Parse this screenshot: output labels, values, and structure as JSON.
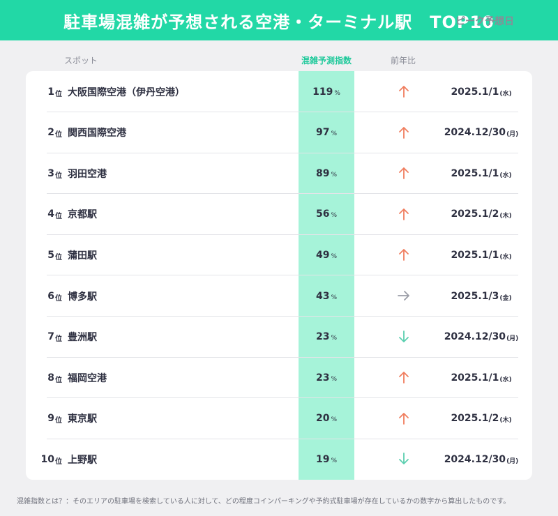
{
  "title": "駐車場混雑が予想される空港・ターミナル駅　TOP10",
  "columns": {
    "spot": "スポット",
    "index": "混雑予測指数",
    "yoy": "前年比",
    "peak": "ピーク予想日"
  },
  "rank_unit": "位",
  "percent_unit": "%",
  "colors": {
    "accent": "#22d8a6",
    "highlight": "#a6f3d9",
    "up": "#f07e5f",
    "flat": "#9a9ca6",
    "down": "#5ccfb0"
  },
  "chart_data": {
    "type": "table",
    "title": "駐車場混雑が予想される空港・ターミナル駅　TOP10",
    "rows": [
      {
        "rank": "1",
        "name": "大阪国際空港（伊丹空港）",
        "index": "119",
        "trend": "up",
        "date": "2025.1/1",
        "dow": "(水)"
      },
      {
        "rank": "2",
        "name": "関西国際空港",
        "index": "97",
        "trend": "up",
        "date": "2024.12/30",
        "dow": "(月)"
      },
      {
        "rank": "3",
        "name": "羽田空港",
        "index": "89",
        "trend": "up",
        "date": "2025.1/1",
        "dow": "(水)"
      },
      {
        "rank": "4",
        "name": "京都駅",
        "index": "56",
        "trend": "up",
        "date": "2025.1/2",
        "dow": "(木)"
      },
      {
        "rank": "5",
        "name": "蒲田駅",
        "index": "49",
        "trend": "up",
        "date": "2025.1/1",
        "dow": "(水)"
      },
      {
        "rank": "6",
        "name": "博多駅",
        "index": "43",
        "trend": "flat",
        "date": "2025.1/3",
        "dow": "(金)"
      },
      {
        "rank": "7",
        "name": "豊洲駅",
        "index": "23",
        "trend": "down",
        "date": "2024.12/30",
        "dow": "(月)"
      },
      {
        "rank": "8",
        "name": "福岡空港",
        "index": "23",
        "trend": "up",
        "date": "2025.1/1",
        "dow": "(水)"
      },
      {
        "rank": "9",
        "name": "東京駅",
        "index": "20",
        "trend": "up",
        "date": "2025.1/2",
        "dow": "(木)"
      },
      {
        "rank": "10",
        "name": "上野駅",
        "index": "19",
        "trend": "down",
        "date": "2024.12/30",
        "dow": "(月)"
      }
    ]
  },
  "footnote": "混雑指数とは？：そのエリアの駐車場を検索している人に対して、どの程度コインパーキングや予約式駐車場が存在しているかの数字から算出したものです。"
}
